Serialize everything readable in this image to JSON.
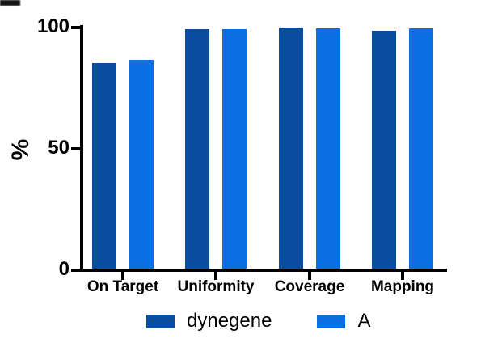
{
  "chart_data": {
    "type": "bar",
    "title": "",
    "categories": [
      "On Target",
      "Uniformity",
      "Coverage",
      "Mapping"
    ],
    "series": [
      {
        "name": "dynegene",
        "color": "#084D9E",
        "values": [
          85.5,
          99.5,
          99.9,
          98.8
        ]
      },
      {
        "name": "A",
        "color": "#0B6FE4",
        "values": [
          86.6,
          99.2,
          99.7,
          99.8
        ]
      }
    ],
    "xlabel": "",
    "ylabel": "%",
    "ylim": [
      0,
      100
    ],
    "yticks": [
      0,
      50,
      100
    ],
    "grid": false,
    "legend_position": "bottom",
    "axis_color": "#000000",
    "background_color": "#ffffff"
  }
}
